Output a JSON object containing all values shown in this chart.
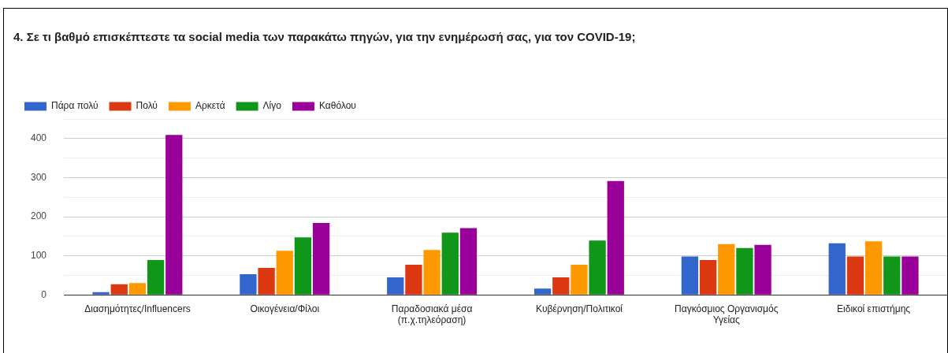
{
  "chart_data": {
    "type": "bar",
    "title": "4. Σε τι βαθμό επισκέπτεστε τα social media των παρακάτω πηγών, για την ενημέρωσή σας, για τον COVID-19;",
    "categories": [
      "Διασημότητες/Influencers",
      "Οικογένεια/Φίλοι",
      "Παραδοσιακά μέσα (π.χ.τηλεόραση)",
      "Κυβέρνηση/Πολιτικοί",
      "Παγκόσμιος Οργανισμός Υγείας",
      "Ειδικοί επιστήμης"
    ],
    "series": [
      {
        "name": "Πάρα πολύ",
        "color": "#3366cc",
        "values": [
          7,
          53,
          45,
          16,
          98,
          132
        ]
      },
      {
        "name": "Πολύ",
        "color": "#dc3912",
        "values": [
          27,
          69,
          77,
          45,
          89,
          98
        ]
      },
      {
        "name": "Αρκετά",
        "color": "#ff9900",
        "values": [
          30,
          113,
          115,
          77,
          130,
          137
        ]
      },
      {
        "name": "Λίγο",
        "color": "#109618",
        "values": [
          89,
          147,
          159,
          139,
          120,
          98
        ]
      },
      {
        "name": "Καθόλου",
        "color": "#990099",
        "values": [
          409,
          184,
          171,
          291,
          128,
          98
        ]
      }
    ],
    "ylim": [
      0,
      450
    ],
    "yticks": [
      0,
      {
        "value": 50,
        "label": null
      },
      100,
      {
        "value": 150,
        "label": null
      },
      200,
      {
        "value": 250,
        "label": null
      },
      300,
      {
        "value": 350,
        "label": null
      },
      400,
      {
        "value": 450,
        "label": null
      }
    ],
    "grid": "y",
    "legend": "top left"
  }
}
